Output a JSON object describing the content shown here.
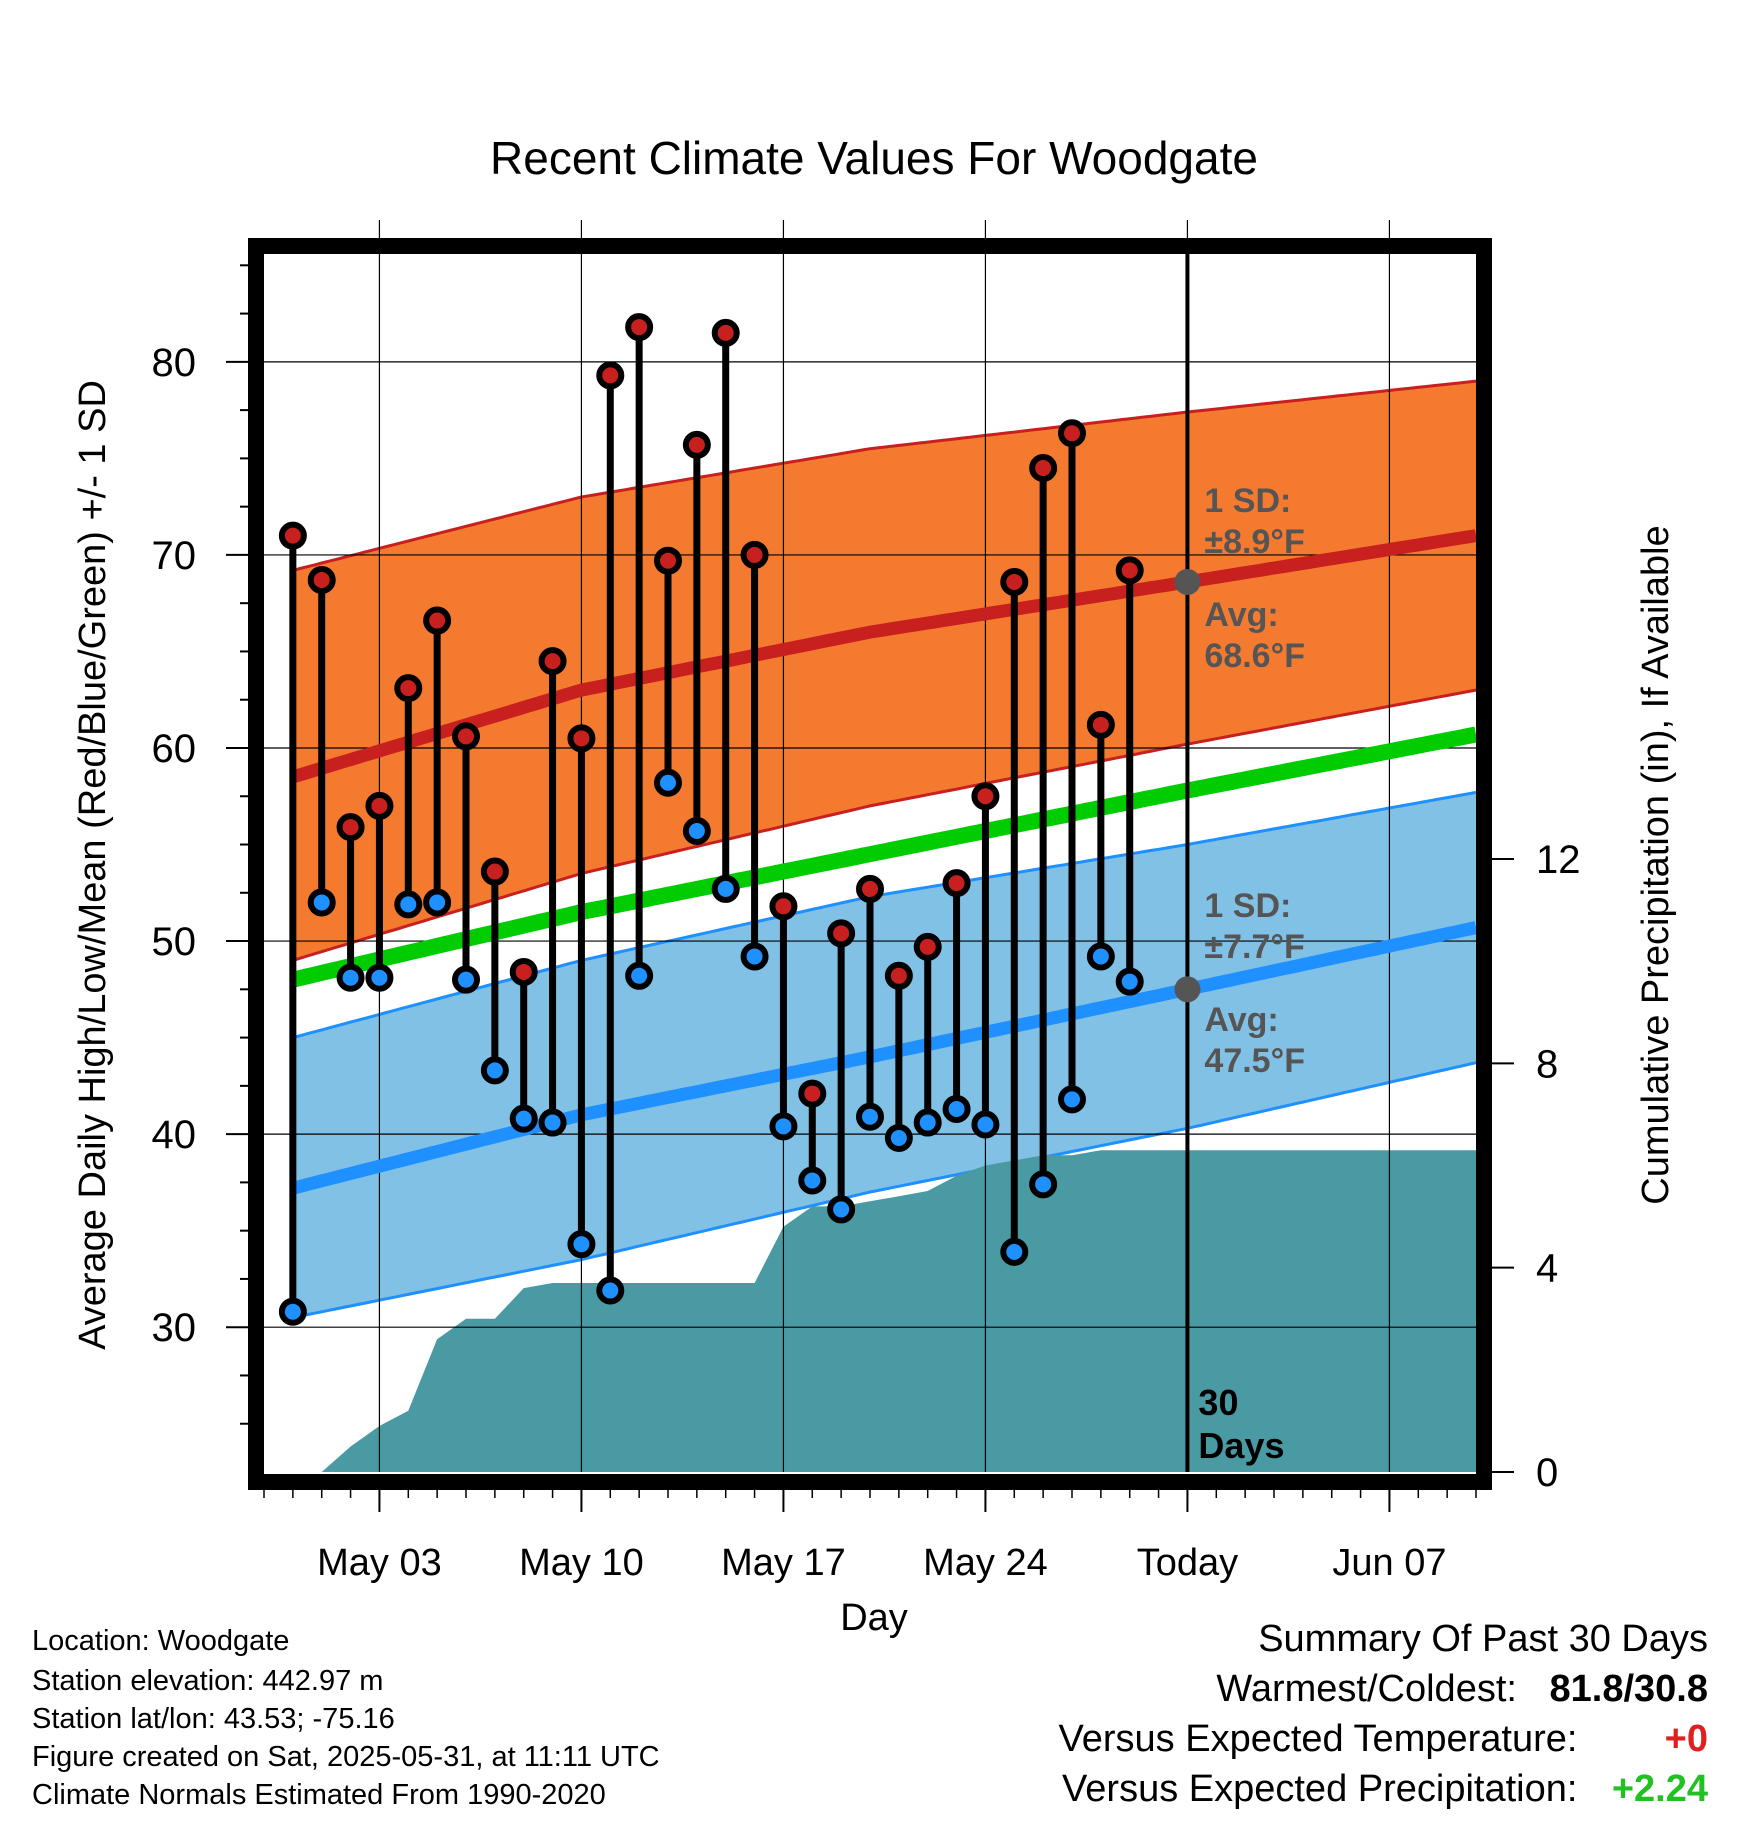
{
  "chart_data": {
    "type": "line",
    "title": "Recent Climate Values For Woodgate",
    "xlabel": "Day",
    "ylabel_left": "Average Daily High/Low/Mean (Red/Blue/Green) +/- 1 SD",
    "ylabel_right": "Cumulative Precipitation (in), If Available",
    "x_range": [
      "2025-04-29",
      "2025-06-10"
    ],
    "ylim": [
      22.5,
      86
    ],
    "ylim_right": [
      0,
      24
    ],
    "y_ticks": [
      30,
      40,
      50,
      60,
      70,
      80
    ],
    "y_ticks_right": [
      0,
      4,
      8,
      12
    ],
    "x_ticks": [
      {
        "date": "2025-05-03",
        "label": "May 03"
      },
      {
        "date": "2025-05-10",
        "label": "May 10"
      },
      {
        "date": "2025-05-17",
        "label": "May 17"
      },
      {
        "date": "2025-05-24",
        "label": "May 24"
      },
      {
        "date": "2025-05-31",
        "label": "Today"
      },
      {
        "date": "2025-06-07",
        "label": "Jun 07"
      }
    ],
    "grid": true,
    "today": "2025-05-31",
    "today_label": "30 Days",
    "normals": {
      "dates": [
        "2025-04-30",
        "2025-05-10",
        "2025-05-20",
        "2025-05-31",
        "2025-06-10"
      ],
      "high_avg": [
        58.5,
        63.0,
        66.0,
        68.6,
        71.0
      ],
      "high_upper": [
        69.2,
        73.0,
        75.5,
        77.4,
        79.0
      ],
      "high_lower": [
        49.0,
        53.5,
        57.0,
        60.2,
        63.0
      ],
      "mean_avg": [
        48.0,
        51.5,
        54.5,
        57.8,
        60.7
      ],
      "low_avg": [
        37.2,
        41.0,
        44.0,
        47.5,
        50.7
      ],
      "low_upper": [
        45.0,
        49.0,
        52.3,
        55.0,
        57.7
      ],
      "low_lower": [
        30.5,
        33.5,
        37.0,
        40.3,
        43.7
      ]
    },
    "series": [
      {
        "name": "High",
        "color": "#c8201e",
        "x": [
          "2025-04-30",
          "2025-05-01",
          "2025-05-02",
          "2025-05-03",
          "2025-05-04",
          "2025-05-05",
          "2025-05-06",
          "2025-05-07",
          "2025-05-08",
          "2025-05-09",
          "2025-05-10",
          "2025-05-11",
          "2025-05-12",
          "2025-05-13",
          "2025-05-14",
          "2025-05-15",
          "2025-05-16",
          "2025-05-17",
          "2025-05-18",
          "2025-05-19",
          "2025-05-20",
          "2025-05-21",
          "2025-05-22",
          "2025-05-23",
          "2025-05-24",
          "2025-05-25",
          "2025-05-26",
          "2025-05-27",
          "2025-05-28",
          "2025-05-29",
          "2025-05-30"
        ],
        "values": [
          71.0,
          68.7,
          55.9,
          57.0,
          63.1,
          66.6,
          60.6,
          53.6,
          48.4,
          64.5,
          60.5,
          79.3,
          81.8,
          69.7,
          75.7,
          81.5,
          70.0,
          51.8,
          42.1,
          50.4,
          52.7,
          48.2,
          49.7,
          53.0,
          57.5,
          68.6,
          74.5,
          76.3,
          61.2,
          69.2,
          null
        ]
      },
      {
        "name": "Low",
        "color": "#1e90ff",
        "x": [
          "2025-04-30",
          "2025-05-01",
          "2025-05-02",
          "2025-05-03",
          "2025-05-04",
          "2025-05-05",
          "2025-05-06",
          "2025-05-07",
          "2025-05-08",
          "2025-05-09",
          "2025-05-10",
          "2025-05-11",
          "2025-05-12",
          "2025-05-13",
          "2025-05-14",
          "2025-05-15",
          "2025-05-16",
          "2025-05-17",
          "2025-05-18",
          "2025-05-19",
          "2025-05-20",
          "2025-05-21",
          "2025-05-22",
          "2025-05-23",
          "2025-05-24",
          "2025-05-25",
          "2025-05-26",
          "2025-05-27",
          "2025-05-28",
          "2025-05-29",
          "2025-05-30"
        ],
        "values": [
          30.8,
          52.0,
          48.1,
          48.1,
          51.9,
          52.0,
          48.0,
          43.3,
          40.8,
          40.6,
          34.3,
          31.9,
          48.2,
          58.2,
          55.7,
          52.7,
          49.2,
          40.4,
          37.6,
          36.1,
          40.9,
          39.8,
          40.6,
          41.3,
          40.5,
          33.9,
          37.4,
          41.8,
          49.2,
          47.9,
          null
        ]
      },
      {
        "name": "Cumulative Precipitation",
        "color": "#4a9aa3",
        "x": [
          "2025-05-01",
          "2025-05-02",
          "2025-05-03",
          "2025-05-04",
          "2025-05-05",
          "2025-05-06",
          "2025-05-07",
          "2025-05-08",
          "2025-05-09",
          "2025-05-10",
          "2025-05-11",
          "2025-05-12",
          "2025-05-13",
          "2025-05-14",
          "2025-05-15",
          "2025-05-16",
          "2025-05-17",
          "2025-05-18",
          "2025-05-19",
          "2025-05-20",
          "2025-05-21",
          "2025-05-22",
          "2025-05-23",
          "2025-05-24",
          "2025-05-25",
          "2025-05-26",
          "2025-05-27",
          "2025-05-28",
          "2025-05-29",
          "2025-05-30",
          "2025-05-31",
          "2025-06-10"
        ],
        "values": [
          0.0,
          0.5,
          0.9,
          1.2,
          2.6,
          3.0,
          3.0,
          3.6,
          3.7,
          3.7,
          3.7,
          3.7,
          3.7,
          3.7,
          3.7,
          3.7,
          4.8,
          5.2,
          5.2,
          5.3,
          5.4,
          5.5,
          5.8,
          6.0,
          6.1,
          6.2,
          6.2,
          6.3,
          6.3,
          6.3,
          6.3,
          6.3
        ]
      }
    ],
    "annotations": {
      "high_sd": "1 SD:",
      "high_sd_val": "±8.9°F",
      "high_avg_label": "Avg:",
      "high_avg_val": "68.6°F",
      "low_sd": "1 SD:",
      "low_sd_val": "±7.7°F",
      "low_avg_label": "Avg:",
      "low_avg_val": "47.5°F"
    },
    "colors": {
      "high_band": "#f47a30",
      "high_line": "#c8201e",
      "mean_line": "#00cc00",
      "low_band": "#82c1e6",
      "low_line": "#1e90ff",
      "precip": "#4a9aa3",
      "annotation": "#555555"
    }
  },
  "info": {
    "location": "Location: Woodgate",
    "elevation": "Station elevation: 442.97 m",
    "latlon": "Station lat/lon: 43.53; -75.16",
    "created": "Figure created on Sat, 2025-05-31, at 11:11 UTC",
    "normals": "Climate Normals Estimated From 1990-2020"
  },
  "summary": {
    "title": "Summary Of Past 30 Days",
    "warm_cold_label": "Warmest/Coldest:",
    "warm_cold_value": "81.8/30.8",
    "temp_label": "Versus Expected Temperature:",
    "temp_value": "+0",
    "temp_color": "#e0201e",
    "precip_label": "Versus Expected Precipitation:",
    "precip_value": "+2.24",
    "precip_color": "#22c020"
  }
}
